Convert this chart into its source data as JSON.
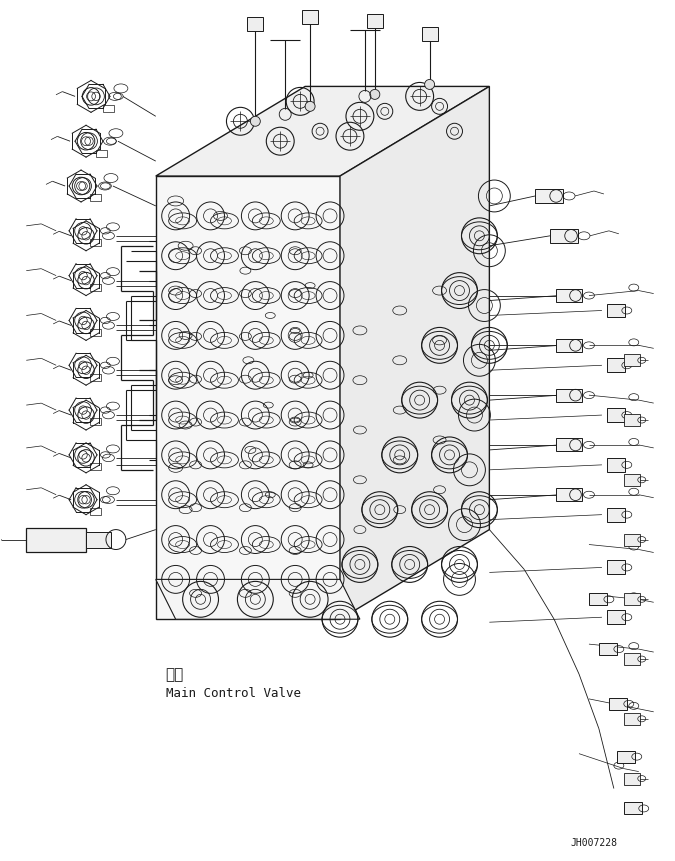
{
  "label_chinese": "主阀",
  "label_english": "Main Control Valve",
  "watermark": "JH007228",
  "bg_color": "#ffffff",
  "line_color": "#1a1a1a",
  "fig_width": 6.75,
  "fig_height": 8.61,
  "dpi": 100
}
